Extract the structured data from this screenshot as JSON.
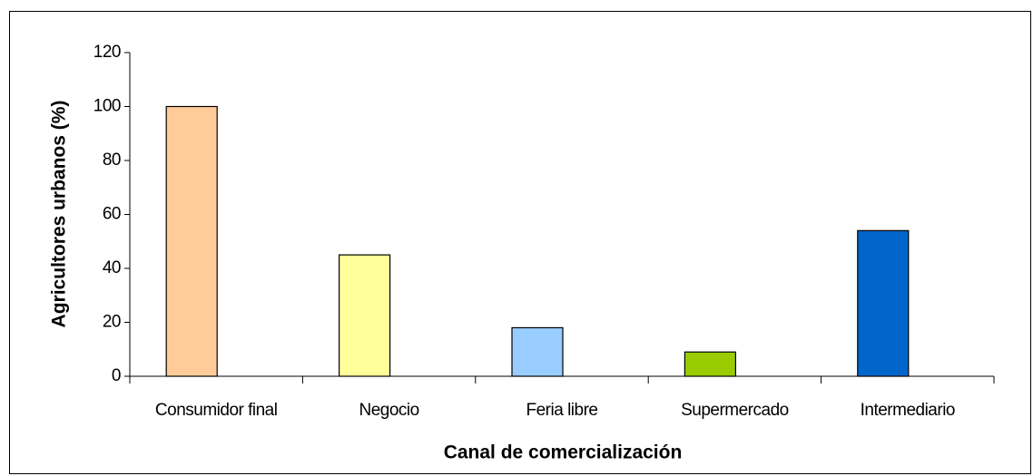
{
  "chart_data": {
    "type": "bar",
    "xlabel": "Canal de comercialización",
    "ylabel": "Agricultores urbanos (%)",
    "categories": [
      "Consumidor final",
      "Negocio",
      "Feria libre",
      "Supermercado",
      "Intermediario"
    ],
    "values": [
      100,
      45,
      18,
      9,
      54
    ],
    "colors": [
      "#ffcc99",
      "#ffff99",
      "#99ccff",
      "#99cc00",
      "#0066cc"
    ],
    "ylim": [
      0,
      120
    ],
    "yticks": [
      0,
      20,
      40,
      60,
      80,
      100,
      120
    ],
    "grid": false
  }
}
